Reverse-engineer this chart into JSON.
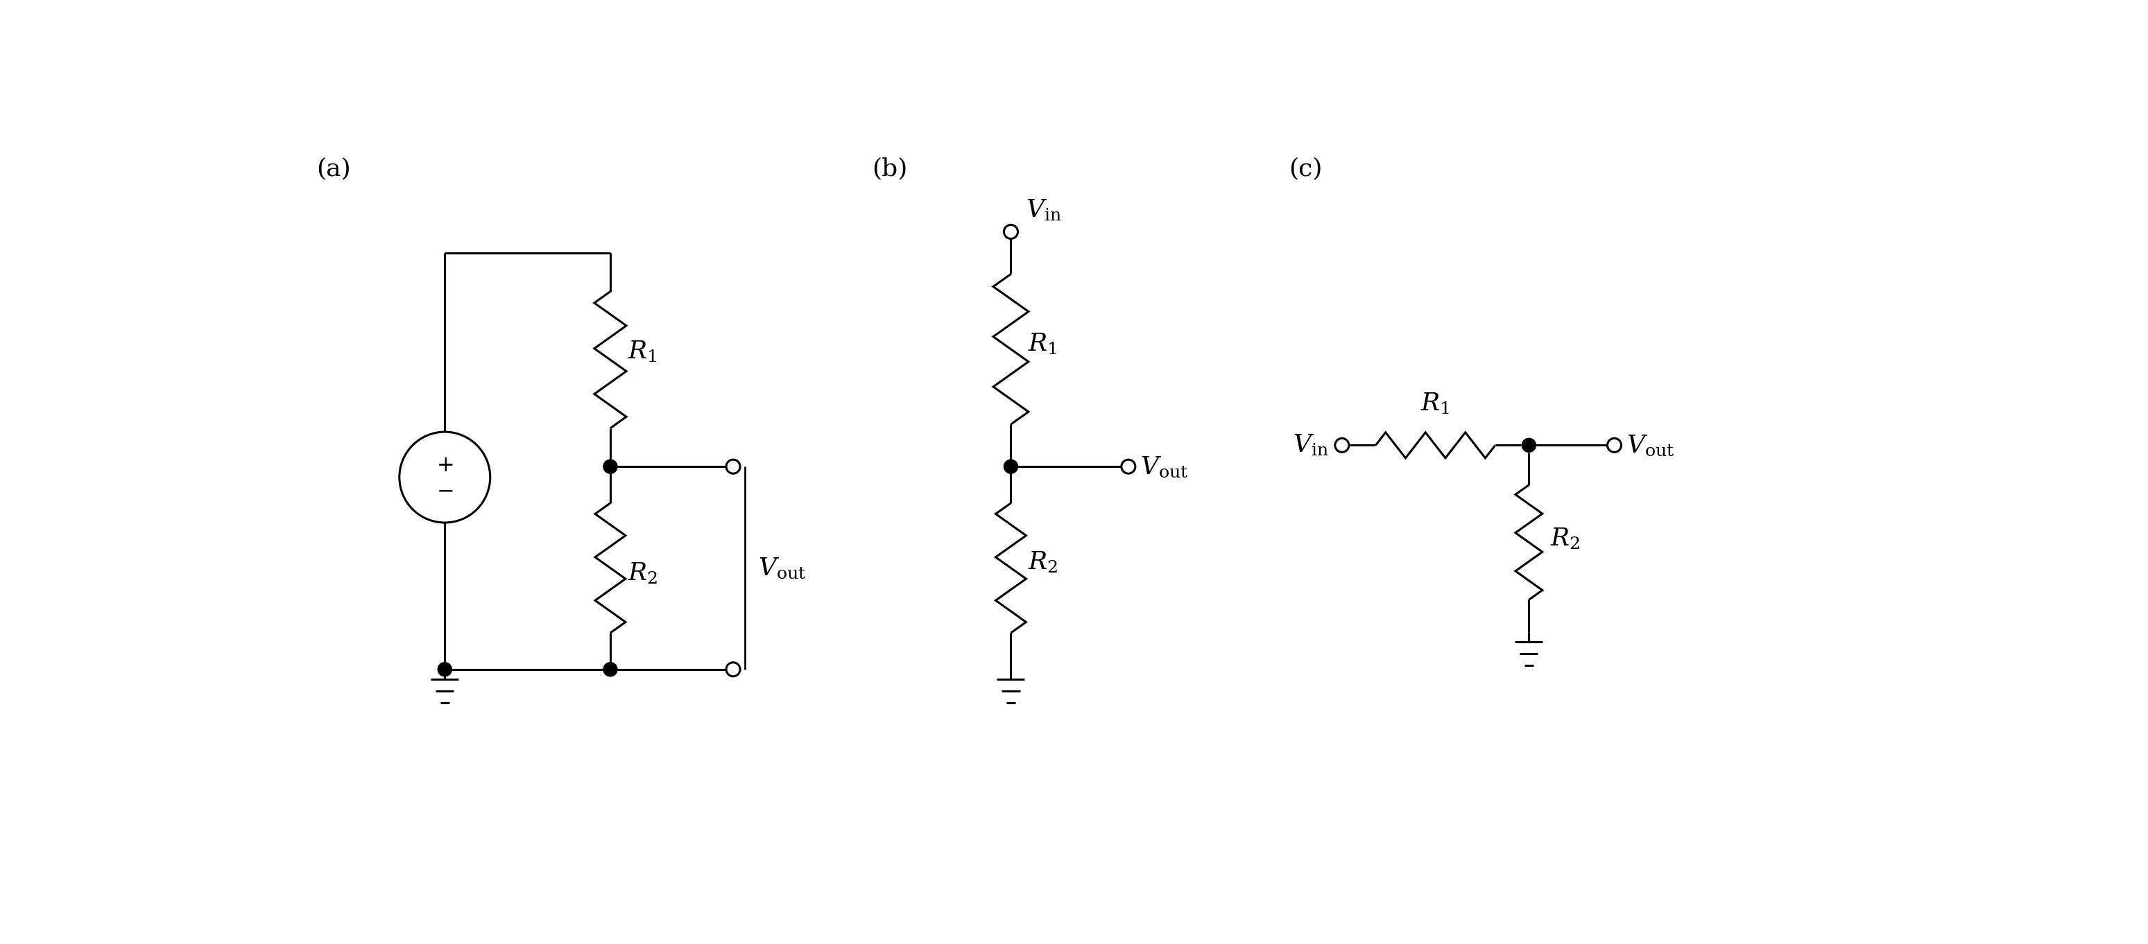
{
  "fig_width": 30.97,
  "fig_height": 13.62,
  "bg_color": "#ffffff",
  "line_color": "#000000",
  "line_width": 2.2,
  "label_a": "(a)",
  "label_b": "(b)",
  "label_c": "(c)",
  "font_size": 26
}
